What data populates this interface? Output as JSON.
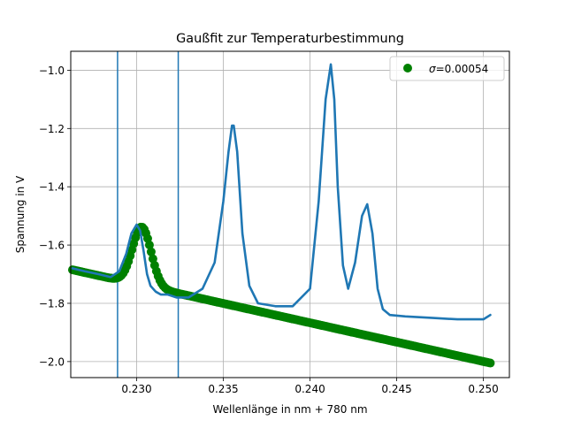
{
  "chart_data": {
    "type": "scatter",
    "title": "Gaußfit zur Temperaturbestimmung",
    "xlabel": "Wellenlänge in nm + 780 nm",
    "ylabel": "Spannung in V",
    "xlim": [
      0.2262,
      0.2515
    ],
    "ylim": [
      -2.055,
      -0.935
    ],
    "xticks": [
      0.23,
      0.235,
      0.24,
      0.245,
      0.25
    ],
    "xtick_labels": [
      "0.230",
      "0.235",
      "0.240",
      "0.245",
      "0.250"
    ],
    "yticks": [
      -2.0,
      -1.8,
      -1.6,
      -1.4,
      -1.2,
      -1.0
    ],
    "ytick_labels": [
      "−2.0",
      "−1.8",
      "−1.6",
      "−1.4",
      "−1.2",
      "−1.0"
    ],
    "grid": true,
    "legend": {
      "position": "top-right",
      "entries": [
        {
          "symbol": "σ",
          "text": "=0.00054",
          "color": "#008000"
        }
      ]
    },
    "colors": {
      "measurement": "#1f77b4",
      "fit": "#008000",
      "vline": "#1f77b4"
    },
    "vlines": [
      0.2289,
      0.2324
    ],
    "series": [
      {
        "kind": "line",
        "x": [
          0.2263,
          0.227,
          0.2278,
          0.2285,
          0.229,
          0.2294,
          0.2297,
          0.23,
          0.2302,
          0.2304,
          0.2306,
          0.2308,
          0.2311,
          0.2314,
          0.2318,
          0.2323,
          0.233,
          0.2338,
          0.2345,
          0.235,
          0.2353,
          0.2355,
          0.2356,
          0.2358,
          0.2361,
          0.2365,
          0.237,
          0.238,
          0.239,
          0.24,
          0.2405,
          0.2409,
          0.2412,
          0.2414,
          0.2416,
          0.2419,
          0.2422,
          0.2426,
          0.243,
          0.2433,
          0.2436,
          0.2439,
          0.2442,
          0.2446,
          0.2455,
          0.247,
          0.2485,
          0.25,
          0.2504
        ],
        "y": [
          -1.68,
          -1.69,
          -1.7,
          -1.71,
          -1.69,
          -1.63,
          -1.56,
          -1.53,
          -1.55,
          -1.62,
          -1.7,
          -1.74,
          -1.76,
          -1.77,
          -1.77,
          -1.78,
          -1.78,
          -1.75,
          -1.66,
          -1.45,
          -1.28,
          -1.19,
          -1.19,
          -1.28,
          -1.56,
          -1.74,
          -1.8,
          -1.81,
          -1.81,
          -1.75,
          -1.45,
          -1.1,
          -0.98,
          -1.1,
          -1.4,
          -1.67,
          -1.75,
          -1.66,
          -1.5,
          -1.46,
          -1.56,
          -1.75,
          -1.82,
          -1.84,
          -1.845,
          -1.85,
          -1.855,
          -1.855,
          -1.84
        ]
      },
      {
        "kind": "points",
        "gaussian": {
          "x0": 0.2263,
          "y0": -1.685,
          "x1": 0.2504,
          "y1": -2.005,
          "amplitude": 0.2,
          "center": 0.2303,
          "sigma": 0.00054
        },
        "n_points": 240
      }
    ]
  }
}
